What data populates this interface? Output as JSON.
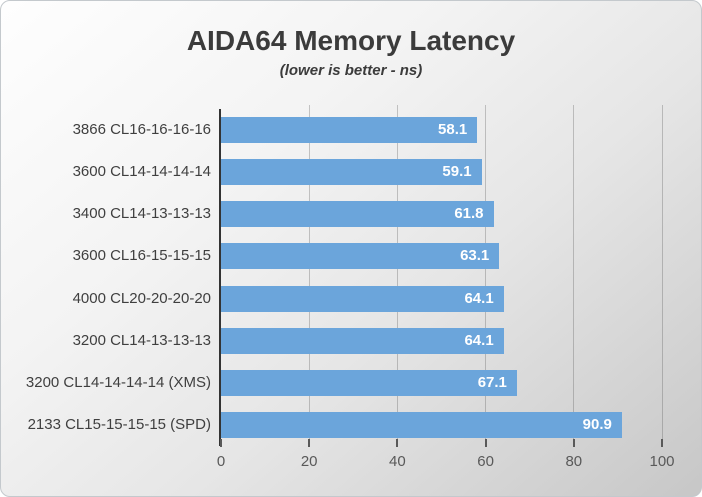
{
  "chart_data": {
    "type": "bar",
    "orientation": "horizontal",
    "title": "AIDA64 Memory Latency",
    "subtitle": "(lower is better - ns)",
    "categories": [
      "3866 CL16-16-16-16",
      "3600 CL14-14-14-14",
      "3400 CL14-13-13-13",
      "3600 CL16-15-15-15",
      "4000 CL20-20-20-20",
      "3200 CL14-13-13-13",
      "3200 CL14-14-14-14 (XMS)",
      "2133 CL15-15-15-15 (SPD)"
    ],
    "values": [
      58.1,
      59.1,
      61.8,
      63.1,
      64.1,
      64.1,
      67.1,
      90.9
    ],
    "value_labels": [
      "58.1",
      "59.1",
      "61.8",
      "63.1",
      "64.1",
      "64.1",
      "67.1",
      "90.9"
    ],
    "xlim": [
      0,
      100
    ],
    "x_ticks": [
      0,
      20,
      40,
      60,
      80,
      100
    ],
    "grid": "vertical-only",
    "legend": "none",
    "bar_color": "#6ba5db",
    "value_label_color": "#ffffff",
    "axis_line_color": "#333333",
    "tick_color": "#595959"
  }
}
